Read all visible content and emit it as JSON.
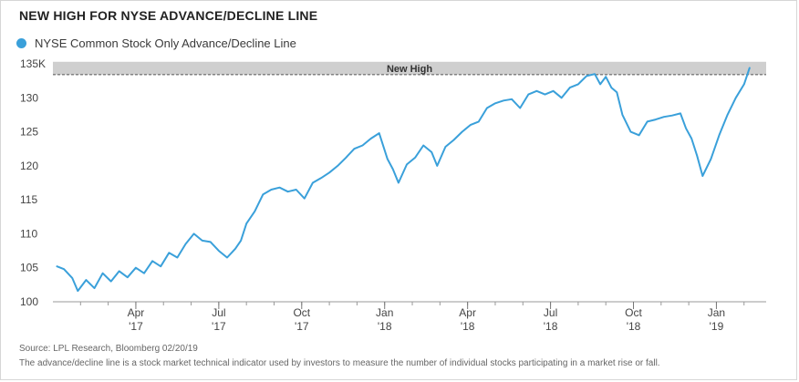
{
  "title": "NEW HIGH FOR NYSE ADVANCE/DECLINE LINE",
  "source": "Source: LPL Research, Bloomberg  02/20/19",
  "note": "The advance/decline line is a stock market technical indicator used by investors to measure the number of individual stocks participating in a market rise or fall.",
  "colors": {
    "series": "#3aa0da",
    "band": "#cfcfcf",
    "grid": "#e6e6e6",
    "axis": "#999999"
  },
  "chart_data": {
    "type": "line",
    "title": "NEW HIGH FOR NYSE ADVANCE/DECLINE LINE",
    "xlabel": "",
    "ylabel": "",
    "ylim": [
      100,
      135
    ],
    "y_ticks": [
      {
        "value": 100,
        "label": "100"
      },
      {
        "value": 105,
        "label": "105"
      },
      {
        "value": 110,
        "label": "110"
      },
      {
        "value": 115,
        "label": "115"
      },
      {
        "value": 120,
        "label": "120"
      },
      {
        "value": 125,
        "label": "125"
      },
      {
        "value": 130,
        "label": "130"
      },
      {
        "value": 135,
        "label": "135K"
      }
    ],
    "x_ticks": [
      {
        "month": 3,
        "line1": "Apr",
        "line2": "'17"
      },
      {
        "month": 6,
        "line1": "Jul",
        "line2": "'17"
      },
      {
        "month": 9,
        "line1": "Oct",
        "line2": "'17"
      },
      {
        "month": 12,
        "line1": "Jan",
        "line2": "'18"
      },
      {
        "month": 15,
        "line1": "Apr",
        "line2": "'18"
      },
      {
        "month": 18,
        "line1": "Jul",
        "line2": "'18"
      },
      {
        "month": 21,
        "line1": "Oct",
        "line2": "'18"
      },
      {
        "month": 24,
        "line1": "Jan",
        "line2": "'19"
      }
    ],
    "xlim": [
      0,
      25.8
    ],
    "annotation": {
      "label": "New High",
      "from": 133.4,
      "to": 135.3
    },
    "legend_position": "top-left",
    "grid": false,
    "series": [
      {
        "name": "NYSE Common Stock Only Advance/Decline Line",
        "x": [
          0.15,
          0.4,
          0.7,
          0.9,
          1.2,
          1.5,
          1.8,
          2.1,
          2.4,
          2.7,
          3.0,
          3.3,
          3.6,
          3.9,
          4.2,
          4.5,
          4.8,
          5.1,
          5.4,
          5.7,
          6.0,
          6.3,
          6.6,
          6.8,
          7.0,
          7.3,
          7.6,
          7.9,
          8.2,
          8.5,
          8.8,
          9.1,
          9.4,
          9.7,
          10.0,
          10.3,
          10.6,
          10.9,
          11.2,
          11.5,
          11.8,
          12.1,
          12.3,
          12.5,
          12.8,
          13.1,
          13.4,
          13.7,
          13.9,
          14.2,
          14.5,
          14.8,
          15.1,
          15.4,
          15.7,
          16.0,
          16.3,
          16.6,
          16.9,
          17.2,
          17.5,
          17.8,
          18.1,
          18.4,
          18.7,
          19.0,
          19.3,
          19.6,
          19.8,
          20.0,
          20.2,
          20.4,
          20.6,
          20.9,
          21.2,
          21.5,
          21.8,
          22.1,
          22.4,
          22.7,
          22.9,
          23.1,
          23.3,
          23.5,
          23.8,
          24.1,
          24.4,
          24.7,
          25.0,
          25.2
        ],
        "values": [
          105.2,
          104.8,
          103.5,
          101.6,
          103.2,
          102.0,
          104.2,
          103.0,
          104.5,
          103.6,
          105.0,
          104.2,
          106.0,
          105.2,
          107.2,
          106.5,
          108.5,
          110.0,
          109.0,
          108.8,
          107.5,
          106.5,
          107.8,
          109.0,
          111.5,
          113.3,
          115.8,
          116.5,
          116.8,
          116.2,
          116.5,
          115.2,
          117.5,
          118.2,
          119.0,
          120.0,
          121.2,
          122.5,
          123.0,
          124.0,
          124.8,
          121.0,
          119.5,
          117.5,
          120.2,
          121.2,
          123.0,
          122.0,
          120.0,
          122.8,
          123.8,
          125.0,
          126.0,
          126.5,
          128.5,
          129.2,
          129.6,
          129.8,
          128.5,
          130.5,
          131.0,
          130.5,
          131.0,
          130.0,
          131.5,
          132.0,
          133.2,
          133.5,
          132.0,
          133.1,
          131.5,
          130.8,
          127.5,
          125.0,
          124.5,
          126.5,
          126.8,
          127.2,
          127.4,
          127.7,
          125.5,
          124.0,
          121.5,
          118.5,
          121.0,
          124.5,
          127.5,
          130.0,
          132.0,
          134.4
        ]
      }
    ]
  }
}
